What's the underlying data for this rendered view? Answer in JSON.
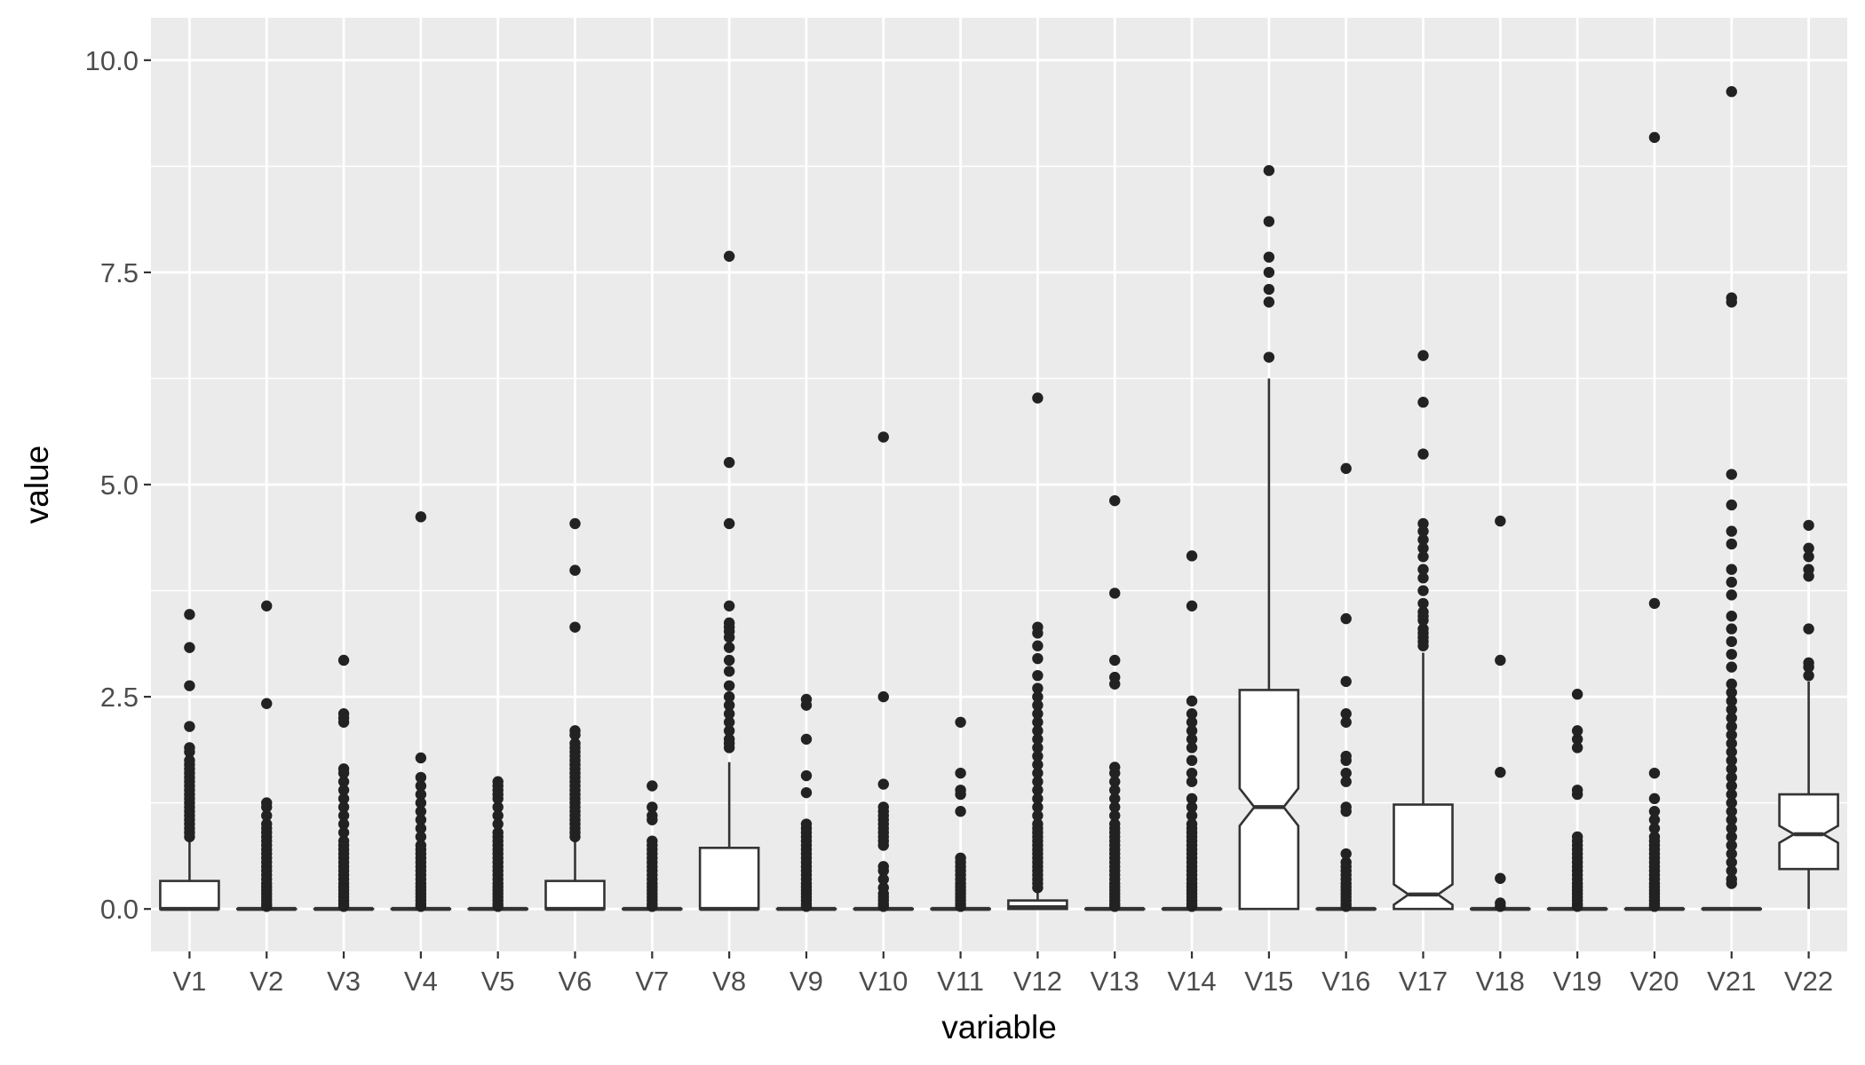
{
  "chart_data": {
    "type": "box",
    "notched": true,
    "xlabel": "variable",
    "ylabel": "value",
    "ylim": [
      -0.5,
      10.5
    ],
    "yticks": [
      0.0,
      2.5,
      5.0,
      7.5,
      10.0
    ],
    "ytick_labels": [
      "0.0",
      "2.5",
      "5.0",
      "7.5",
      "10.0"
    ],
    "grid": true,
    "categories": [
      "V1",
      "V2",
      "V3",
      "V4",
      "V5",
      "V6",
      "V7",
      "V8",
      "V9",
      "V10",
      "V11",
      "V12",
      "V13",
      "V14",
      "V15",
      "V16",
      "V17",
      "V18",
      "V19",
      "V20",
      "V21",
      "V22"
    ],
    "boxes": [
      {
        "q1": 0,
        "median": 0,
        "q3": 0.33,
        "whisker_low": 0,
        "whisker_high": 0.8,
        "outliers": [
          0.85,
          0.9,
          0.95,
          1.0,
          1.05,
          1.1,
          1.15,
          1.2,
          1.25,
          1.3,
          1.35,
          1.4,
          1.45,
          1.5,
          1.55,
          1.6,
          1.65,
          1.7,
          1.75,
          1.85,
          1.9,
          2.15,
          2.63,
          3.08,
          3.47
        ]
      },
      {
        "q1": 0,
        "median": 0,
        "q3": 0,
        "whisker_low": 0,
        "whisker_high": 0,
        "outliers": [
          0.03,
          0.06,
          0.1,
          0.14,
          0.18,
          0.22,
          0.26,
          0.3,
          0.35,
          0.4,
          0.45,
          0.5,
          0.55,
          0.6,
          0.65,
          0.7,
          0.75,
          0.8,
          0.85,
          0.9,
          0.95,
          1.0,
          1.1,
          1.2,
          1.25,
          2.42,
          3.57
        ]
      },
      {
        "q1": 0,
        "median": 0,
        "q3": 0,
        "whisker_low": 0,
        "whisker_high": 0,
        "outliers": [
          0.03,
          0.06,
          0.1,
          0.14,
          0.18,
          0.22,
          0.26,
          0.3,
          0.35,
          0.4,
          0.45,
          0.5,
          0.55,
          0.6,
          0.65,
          0.7,
          0.75,
          0.8,
          0.9,
          1.0,
          1.1,
          1.2,
          1.3,
          1.4,
          1.5,
          1.6,
          1.65,
          2.2,
          2.25,
          2.3,
          2.93
        ]
      },
      {
        "q1": 0,
        "median": 0,
        "q3": 0,
        "whisker_low": 0,
        "whisker_high": 0,
        "outliers": [
          0.03,
          0.06,
          0.1,
          0.14,
          0.18,
          0.22,
          0.26,
          0.3,
          0.35,
          0.4,
          0.45,
          0.5,
          0.55,
          0.6,
          0.65,
          0.7,
          0.75,
          0.85,
          0.95,
          1.05,
          1.15,
          1.25,
          1.35,
          1.45,
          1.55,
          1.78,
          4.62
        ]
      },
      {
        "q1": 0,
        "median": 0,
        "q3": 0,
        "whisker_low": 0,
        "whisker_high": 0,
        "outliers": [
          0.03,
          0.06,
          0.1,
          0.14,
          0.18,
          0.22,
          0.26,
          0.3,
          0.35,
          0.4,
          0.45,
          0.5,
          0.55,
          0.6,
          0.65,
          0.7,
          0.75,
          0.8,
          0.85,
          0.9,
          1.0,
          1.1,
          1.2,
          1.3,
          1.35,
          1.4,
          1.45,
          1.5
        ]
      },
      {
        "q1": 0,
        "median": 0,
        "q3": 0.33,
        "whisker_low": 0,
        "whisker_high": 0.8,
        "outliers": [
          0.85,
          0.9,
          0.95,
          1.0,
          1.05,
          1.1,
          1.15,
          1.2,
          1.25,
          1.3,
          1.35,
          1.4,
          1.45,
          1.5,
          1.55,
          1.6,
          1.65,
          1.7,
          1.75,
          1.8,
          1.85,
          1.9,
          1.95,
          2.05,
          2.1,
          3.32,
          3.99,
          4.54
        ]
      },
      {
        "q1": 0,
        "median": 0,
        "q3": 0,
        "whisker_low": 0,
        "whisker_high": 0,
        "outliers": [
          0.03,
          0.06,
          0.1,
          0.14,
          0.18,
          0.22,
          0.26,
          0.3,
          0.35,
          0.4,
          0.45,
          0.5,
          0.55,
          0.6,
          0.65,
          0.7,
          0.75,
          0.8,
          1.05,
          1.1,
          1.2,
          1.45
        ]
      },
      {
        "q1": 0,
        "median": 0,
        "q3": 0.72,
        "whisker_low": 0,
        "whisker_high": 1.73,
        "outliers": [
          1.9,
          1.95,
          2.0,
          2.1,
          2.2,
          2.3,
          2.4,
          2.5,
          2.63,
          2.8,
          2.93,
          3.08,
          3.2,
          3.27,
          3.32,
          3.37,
          3.57,
          4.54,
          5.26,
          7.69
        ]
      },
      {
        "q1": 0,
        "median": 0,
        "q3": 0,
        "whisker_low": 0,
        "whisker_high": 0,
        "outliers": [
          0.03,
          0.06,
          0.1,
          0.14,
          0.18,
          0.22,
          0.26,
          0.3,
          0.35,
          0.4,
          0.45,
          0.5,
          0.55,
          0.6,
          0.65,
          0.7,
          0.75,
          0.8,
          0.85,
          0.9,
          0.95,
          1.0,
          1.37,
          1.57,
          2.0,
          2.4,
          2.47
        ]
      },
      {
        "q1": 0,
        "median": 0,
        "q3": 0,
        "whisker_low": 0,
        "whisker_high": 0,
        "outliers": [
          0.03,
          0.06,
          0.1,
          0.14,
          0.18,
          0.25,
          0.35,
          0.45,
          0.5,
          0.75,
          0.8,
          0.85,
          0.9,
          0.95,
          1.0,
          1.05,
          1.1,
          1.15,
          1.2,
          1.47,
          2.5,
          5.56
        ]
      },
      {
        "q1": 0,
        "median": 0,
        "q3": 0,
        "whisker_low": 0,
        "whisker_high": 0,
        "outliers": [
          0.03,
          0.06,
          0.1,
          0.14,
          0.18,
          0.22,
          0.26,
          0.3,
          0.35,
          0.4,
          0.45,
          0.5,
          0.55,
          0.6,
          1.15,
          1.35,
          1.4,
          1.6,
          2.2
        ]
      },
      {
        "q1": 0,
        "median": 0.02,
        "q3": 0.1,
        "whisker_low": 0,
        "whisker_high": 0.2,
        "outliers": [
          0.25,
          0.3,
          0.35,
          0.4,
          0.45,
          0.5,
          0.55,
          0.6,
          0.65,
          0.7,
          0.75,
          0.8,
          0.85,
          0.9,
          0.95,
          1.0,
          1.1,
          1.2,
          1.3,
          1.4,
          1.5,
          1.6,
          1.7,
          1.8,
          1.9,
          2.0,
          2.1,
          2.2,
          2.3,
          2.4,
          2.5,
          2.6,
          2.75,
          2.95,
          3.1,
          3.25,
          3.32,
          6.02
        ]
      },
      {
        "q1": 0,
        "median": 0,
        "q3": 0,
        "whisker_low": 0,
        "whisker_high": 0,
        "outliers": [
          0.03,
          0.06,
          0.1,
          0.14,
          0.18,
          0.22,
          0.26,
          0.3,
          0.35,
          0.4,
          0.45,
          0.5,
          0.55,
          0.6,
          0.65,
          0.7,
          0.75,
          0.8,
          0.85,
          0.9,
          0.95,
          1.0,
          1.1,
          1.2,
          1.3,
          1.4,
          1.5,
          1.6,
          1.67,
          2.65,
          2.73,
          2.93,
          3.72,
          4.81
        ]
      },
      {
        "q1": 0,
        "median": 0,
        "q3": 0,
        "whisker_low": 0,
        "whisker_high": 0,
        "outliers": [
          0.03,
          0.06,
          0.1,
          0.14,
          0.18,
          0.22,
          0.26,
          0.3,
          0.35,
          0.4,
          0.45,
          0.5,
          0.55,
          0.6,
          0.65,
          0.7,
          0.75,
          0.8,
          0.85,
          0.9,
          0.95,
          1.0,
          1.1,
          1.2,
          1.3,
          1.5,
          1.6,
          1.75,
          1.9,
          2.0,
          2.1,
          2.2,
          2.3,
          2.45,
          3.57,
          4.16
        ]
      },
      {
        "q1": 0,
        "median": 1.2,
        "q3": 2.58,
        "whisker_low": 0,
        "whisker_high": 6.25,
        "notch_low": 0.98,
        "notch_high": 1.42,
        "outliers": [
          6.5,
          7.15,
          7.3,
          7.5,
          7.68,
          8.1,
          8.7
        ]
      },
      {
        "q1": 0,
        "median": 0,
        "q3": 0,
        "whisker_low": 0,
        "whisker_high": 0,
        "outliers": [
          0.03,
          0.06,
          0.1,
          0.14,
          0.18,
          0.22,
          0.26,
          0.3,
          0.35,
          0.4,
          0.45,
          0.5,
          0.55,
          0.65,
          1.15,
          1.2,
          1.5,
          1.6,
          1.75,
          1.8,
          2.2,
          2.3,
          2.68,
          3.42,
          5.19
        ]
      },
      {
        "q1": 0,
        "median": 0.17,
        "q3": 1.23,
        "whisker_low": 0,
        "whisker_high": 3.02,
        "notch_low": 0.05,
        "notch_high": 0.29,
        "outliers": [
          3.1,
          3.15,
          3.2,
          3.25,
          3.3,
          3.4,
          3.45,
          3.5,
          3.6,
          3.75,
          3.9,
          4.0,
          4.15,
          4.25,
          4.35,
          4.45,
          4.54,
          5.36,
          5.97,
          6.52
        ]
      },
      {
        "q1": 0,
        "median": 0,
        "q3": 0,
        "whisker_low": 0,
        "whisker_high": 0,
        "outliers": [
          0.03,
          0.07,
          0.36,
          1.61,
          2.93,
          4.57
        ]
      },
      {
        "q1": 0,
        "median": 0,
        "q3": 0,
        "whisker_low": 0,
        "whisker_high": 0,
        "outliers": [
          0.03,
          0.06,
          0.1,
          0.14,
          0.18,
          0.22,
          0.26,
          0.3,
          0.35,
          0.4,
          0.45,
          0.5,
          0.55,
          0.6,
          0.65,
          0.7,
          0.75,
          0.8,
          0.85,
          1.35,
          1.4,
          1.9,
          2.0,
          2.1,
          2.53
        ]
      },
      {
        "q1": 0,
        "median": 0,
        "q3": 0,
        "whisker_low": 0,
        "whisker_high": 0,
        "outliers": [
          0.03,
          0.06,
          0.1,
          0.14,
          0.18,
          0.22,
          0.26,
          0.3,
          0.35,
          0.4,
          0.45,
          0.5,
          0.55,
          0.6,
          0.65,
          0.7,
          0.75,
          0.8,
          0.85,
          0.95,
          1.05,
          1.15,
          1.3,
          1.6,
          3.6,
          9.09
        ]
      },
      {
        "q1": 0,
        "median": 0,
        "q3": 0,
        "whisker_low": 0,
        "whisker_high": 0,
        "outliers": [
          0.3,
          0.35,
          0.45,
          0.55,
          0.65,
          0.75,
          0.85,
          0.95,
          1.05,
          1.15,
          1.25,
          1.35,
          1.45,
          1.55,
          1.65,
          1.75,
          1.85,
          1.95,
          2.05,
          2.15,
          2.25,
          2.35,
          2.45,
          2.55,
          2.65,
          2.85,
          3.0,
          3.15,
          3.3,
          3.45,
          3.7,
          3.85,
          4.0,
          4.3,
          4.45,
          4.76,
          5.12,
          7.15,
          7.2,
          9.63
        ]
      },
      {
        "q1": 0.47,
        "median": 0.88,
        "q3": 1.35,
        "whisker_low": 0,
        "whisker_high": 2.68,
        "notch_low": 0.78,
        "notch_high": 0.98,
        "outliers": [
          2.75,
          2.85,
          2.9,
          3.3,
          3.92,
          4.0,
          4.15,
          4.25,
          4.52
        ]
      }
    ]
  }
}
